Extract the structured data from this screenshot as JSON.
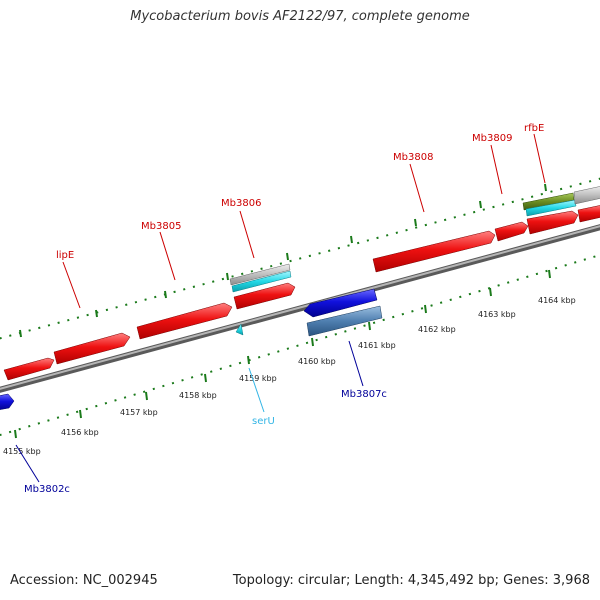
{
  "header": {
    "title": "Mycobacterium bovis AF2122/97, complete genome"
  },
  "footer": {
    "accession": "Accession: NC_002945",
    "topology": "Topology: circular; Length: 4,345,492 bp; Genes: 3,968"
  },
  "colors": {
    "forward_gene": "#ee1111",
    "reverse_gene": "#1111dd",
    "cds_steelblue": "#4f7fb0",
    "rna_cyan": "#22d8e6",
    "gene_grey": "#bfbfbf",
    "gene_olive": "#6b8e23",
    "backbone": "#8a8a8a",
    "tick_green": "#1b7a1b",
    "label_red": "#cc0000",
    "label_blue": "#000099",
    "label_cyan": "#33b5e5"
  },
  "scale_labels": [
    "4155 kbp",
    "4156 kbp",
    "4157 kbp",
    "4158 kbp",
    "4159 kbp",
    "4160 kbp",
    "4161 kbp",
    "4162 kbp",
    "4163 kbp",
    "4164 kbp"
  ],
  "gene_labels": {
    "lipE": "lipE",
    "Mb3805": "Mb3805",
    "Mb3806": "Mb3806",
    "Mb3808": "Mb3808",
    "Mb3809": "Mb3809",
    "rfbE": "rfbE",
    "serU": "serU",
    "Mb3807c": "Mb3807c",
    "Mb3802c": "Mb3802c"
  }
}
